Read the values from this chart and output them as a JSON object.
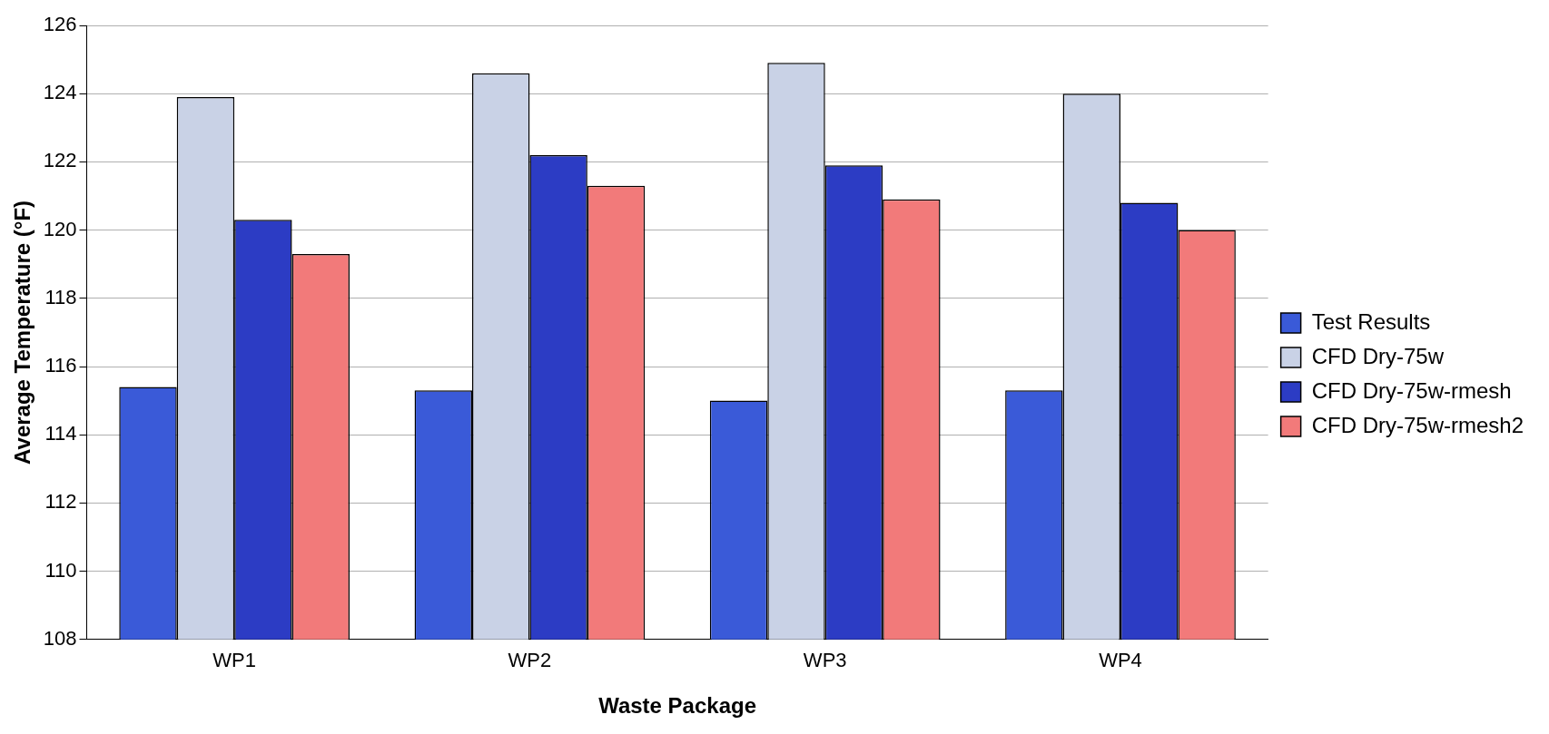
{
  "chart_data": {
    "type": "bar",
    "xlabel": "Waste Package",
    "ylabel": "Average Temperature (°F)",
    "categories": [
      "WP1",
      "WP2",
      "WP3",
      "WP4"
    ],
    "series": [
      {
        "name": "Test Results",
        "color": "#3a5ad8",
        "values": [
          115.4,
          115.3,
          115.0,
          115.3
        ]
      },
      {
        "name": "CFD Dry-75w",
        "color": "#c9d2e6",
        "values": [
          123.9,
          124.6,
          124.9,
          124.0
        ]
      },
      {
        "name": "CFD Dry-75w-rmesh",
        "color": "#2c3cc4",
        "values": [
          120.3,
          122.2,
          121.9,
          120.8
        ]
      },
      {
        "name": "CFD Dry-75w-rmesh2",
        "color": "#f27a7a",
        "values": [
          119.3,
          121.3,
          120.9,
          120.0
        ]
      }
    ],
    "ylim": [
      108,
      126
    ],
    "yticks": [
      108,
      110,
      112,
      114,
      116,
      118,
      120,
      122,
      124,
      126
    ],
    "grid": "y",
    "legend": "right"
  }
}
